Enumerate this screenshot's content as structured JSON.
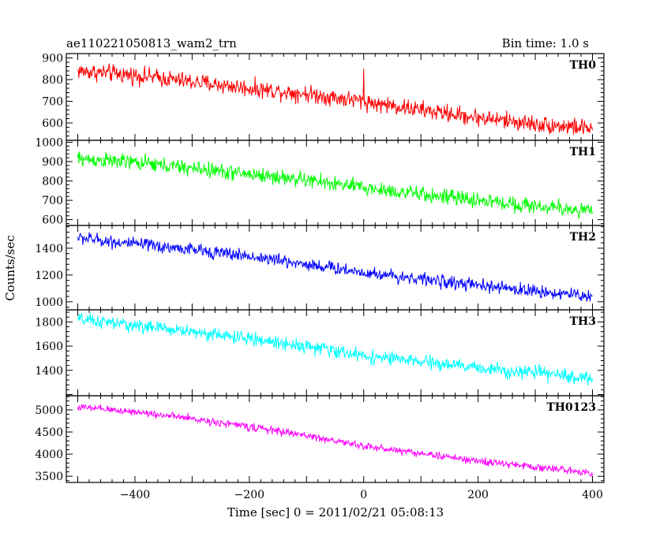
{
  "header": {
    "title": "ae110221050813_wam2_trn",
    "bin_time": "Bin time: 1.0 s"
  },
  "axes": {
    "xlabel": "Time [sec] 0 = 2011/02/21 05:08:13",
    "ylabel": "Counts/sec"
  },
  "chart_data": {
    "type": "line",
    "x_range": [
      -520,
      420
    ],
    "x_data_range": [
      -500,
      400
    ],
    "x_ticks": [
      -400,
      -200,
      0,
      200,
      400
    ],
    "x_tick_labels": [
      "−400",
      "−200",
      "0",
      "200",
      "400"
    ],
    "grid": false,
    "panels": [
      {
        "name": "TH0",
        "color": "#ff0000",
        "ylim": [
          520,
          920
        ],
        "y_ticks": [
          600,
          700,
          800,
          900
        ],
        "y_tick_labels": [
          "600",
          "700",
          "800",
          "900"
        ],
        "trend_x": [
          -500,
          -400,
          -300,
          -200,
          -100,
          0,
          100,
          200,
          300,
          400
        ],
        "trend_y": [
          840,
          820,
          790,
          760,
          735,
          700,
          660,
          625,
          595,
          575
        ],
        "noise": 40,
        "spikes": [
          [
            0,
            850
          ],
          [
            25,
            680
          ]
        ]
      },
      {
        "name": "TH1",
        "color": "#00ff00",
        "ylim": [
          570,
          1010
        ],
        "y_ticks": [
          600,
          700,
          800,
          900,
          1000
        ],
        "y_tick_labels": [
          "600",
          "700",
          "800",
          "900",
          "1000"
        ],
        "trend_x": [
          -500,
          -400,
          -300,
          -200,
          -100,
          0,
          100,
          200,
          300,
          400
        ],
        "trend_y": [
          915,
          895,
          865,
          835,
          805,
          765,
          730,
          700,
          670,
          645
        ],
        "noise": 40,
        "spikes": []
      },
      {
        "name": "TH2",
        "color": "#0000ff",
        "ylim": [
          940,
          1570
        ],
        "y_ticks": [
          1000,
          1200,
          1400
        ],
        "y_tick_labels": [
          "1000",
          "1200",
          "1400"
        ],
        "trend_x": [
          -500,
          -400,
          -300,
          -200,
          -100,
          0,
          100,
          200,
          300,
          400
        ],
        "trend_y": [
          1480,
          1430,
          1390,
          1340,
          1280,
          1220,
          1170,
          1120,
          1080,
          1040
        ],
        "noise": 48,
        "spikes": []
      },
      {
        "name": "TH3",
        "color": "#00ffff",
        "ylim": [
          1190,
          1900
        ],
        "y_ticks": [
          1400,
          1600,
          1800
        ],
        "y_tick_labels": [
          "1400",
          "1600",
          "1800"
        ],
        "trend_x": [
          -500,
          -400,
          -300,
          -200,
          -100,
          0,
          100,
          200,
          300,
          400
        ],
        "trend_y": [
          1820,
          1770,
          1720,
          1660,
          1600,
          1520,
          1470,
          1420,
          1380,
          1330
        ],
        "noise": 55,
        "spikes": []
      },
      {
        "name": "TH0123",
        "color": "#ff00ff",
        "ylim": [
          3360,
          5320
        ],
        "y_ticks": [
          3500,
          4000,
          4500,
          5000
        ],
        "y_tick_labels": [
          "3500",
          "4000",
          "4500",
          "5000"
        ],
        "trend_x": [
          -500,
          -400,
          -300,
          -200,
          -100,
          0,
          100,
          200,
          300,
          400
        ],
        "trend_y": [
          5060,
          4960,
          4800,
          4620,
          4420,
          4180,
          4020,
          3840,
          3710,
          3580
        ],
        "noise": 85,
        "spikes": []
      }
    ]
  }
}
